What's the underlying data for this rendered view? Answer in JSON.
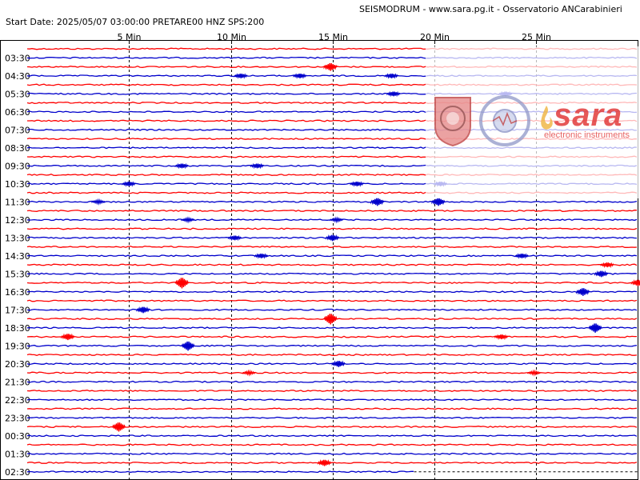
{
  "header": {
    "title": "SEISMODRUM - www.sara.pg.it - Osservatorio ANCarabinieri",
    "start_info": "Start Date: 2025/05/07 03:00:00 PRETARE00 HNZ  SPS:200"
  },
  "watermark": {
    "brand": "sara",
    "brand_sub": "electronic instruments",
    "seal_text": "Italian Experimental Seismic Network"
  },
  "colors": {
    "red": "#ff0000",
    "blue": "#0000cc",
    "grid": "#000000",
    "brand": "#e23b3b"
  },
  "chart_data": {
    "type": "line",
    "title": "",
    "x_ticks": [
      "5 Min",
      "10 Min",
      "15 Min",
      "20 Min",
      "25 Min"
    ],
    "x_tick_values": [
      5,
      10,
      15,
      20,
      25
    ],
    "x_range_min": [
      0,
      30
    ],
    "rows_per_hour": 2,
    "row_colors": [
      "red",
      "blue"
    ],
    "y_labels": [
      "03:30",
      "04:30",
      "05:30",
      "06:30",
      "07:30",
      "08:30",
      "09:30",
      "10:30",
      "11:30",
      "12:30",
      "13:30",
      "14:30",
      "15:30",
      "16:30",
      "17:30",
      "18:30",
      "19:30",
      "20:30",
      "21:30",
      "22:30",
      "23:30",
      "00:30",
      "01:30",
      "02:30"
    ],
    "last_row_end_min": 19,
    "events": [
      {
        "row": 2,
        "t": 14.9,
        "amp": 5
      },
      {
        "row": 3,
        "t": 10.5,
        "amp": 3
      },
      {
        "row": 3,
        "t": 13.4,
        "amp": 3
      },
      {
        "row": 3,
        "t": 17.9,
        "amp": 3
      },
      {
        "row": 5,
        "t": 18.0,
        "amp": 3
      },
      {
        "row": 5,
        "t": 23.5,
        "amp": 3
      },
      {
        "row": 13,
        "t": 7.6,
        "amp": 3
      },
      {
        "row": 13,
        "t": 11.3,
        "amp": 3
      },
      {
        "row": 15,
        "t": 5.0,
        "amp": 3
      },
      {
        "row": 15,
        "t": 16.2,
        "amp": 3
      },
      {
        "row": 15,
        "t": 20.3,
        "amp": 3
      },
      {
        "row": 17,
        "t": 17.2,
        "amp": 5
      },
      {
        "row": 17,
        "t": 20.2,
        "amp": 5
      },
      {
        "row": 17,
        "t": 3.5,
        "amp": 2
      },
      {
        "row": 19,
        "t": 7.9,
        "amp": 2
      },
      {
        "row": 19,
        "t": 15.2,
        "amp": 2
      },
      {
        "row": 21,
        "t": 10.2,
        "amp": 3
      },
      {
        "row": 21,
        "t": 15.0,
        "amp": 4
      },
      {
        "row": 23,
        "t": 11.5,
        "amp": 3
      },
      {
        "row": 23,
        "t": 24.3,
        "amp": 3
      },
      {
        "row": 24,
        "t": 28.5,
        "amp": 3
      },
      {
        "row": 25,
        "t": 28.2,
        "amp": 4
      },
      {
        "row": 26,
        "t": 7.6,
        "amp": 7
      },
      {
        "row": 26,
        "t": 30.0,
        "amp": 4
      },
      {
        "row": 27,
        "t": 27.3,
        "amp": 5
      },
      {
        "row": 29,
        "t": 5.7,
        "amp": 4
      },
      {
        "row": 29,
        "t": 31.2,
        "amp": 3
      },
      {
        "row": 30,
        "t": 14.9,
        "amp": 7
      },
      {
        "row": 31,
        "t": 27.9,
        "amp": 6
      },
      {
        "row": 32,
        "t": 2.0,
        "amp": 4
      },
      {
        "row": 32,
        "t": 23.3,
        "amp": 3
      },
      {
        "row": 33,
        "t": 7.9,
        "amp": 6
      },
      {
        "row": 35,
        "t": 15.3,
        "amp": 4
      },
      {
        "row": 36,
        "t": 10.9,
        "amp": 2
      },
      {
        "row": 36,
        "t": 24.9,
        "amp": 2
      },
      {
        "row": 42,
        "t": 4.5,
        "amp": 6
      },
      {
        "row": 46,
        "t": 14.6,
        "amp": 4
      }
    ]
  }
}
